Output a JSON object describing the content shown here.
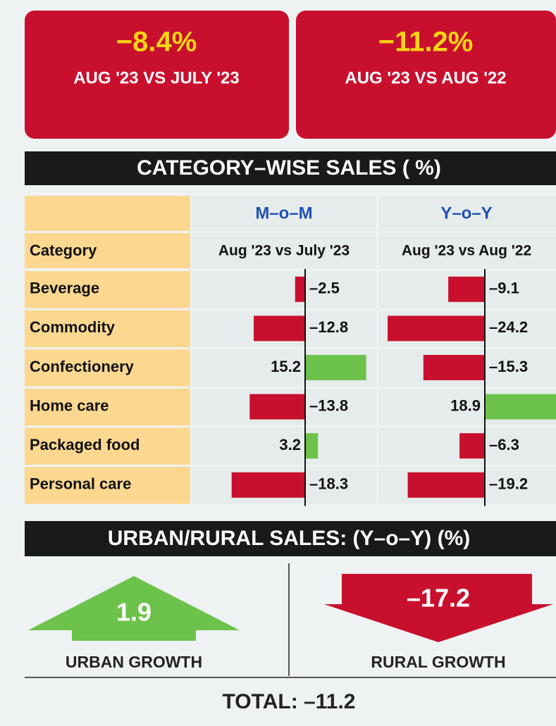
{
  "summary": [
    {
      "value": "−8.4%",
      "label": "AUG '23 VS JULY '23"
    },
    {
      "value": "−11.2%",
      "label": "AUG '23 VS AUG '22"
    }
  ],
  "table": {
    "title": "CATEGORY–WISE SALES ( %)",
    "groups": [
      "M–o–M",
      "Y–o–Y"
    ],
    "header": [
      "Category",
      "Aug '23 vs July '23",
      "Aug '23 vs Aug '22"
    ],
    "categories": [
      "Beverage",
      "Commodity",
      "Confectionery",
      "Home care",
      "Packaged food",
      "Personal care"
    ],
    "mom": {
      "values": [
        -2.5,
        -12.8,
        15.2,
        -13.8,
        3.2,
        -18.3
      ],
      "value_labels": [
        "–2.5",
        "–12.8",
        "15.2",
        "–13.8",
        "3.2",
        "–18.3"
      ]
    },
    "yoy": {
      "values": [
        -9.1,
        -24.2,
        -15.3,
        18.9,
        -6.3,
        -19.2
      ],
      "value_labels": [
        "–9.1",
        "–24.2",
        "–15.3",
        "18.9",
        "–6.3",
        "–19.2"
      ]
    },
    "negative_color": "#c8102e",
    "positive_color": "#6cc24a"
  },
  "urban_rural": {
    "title": "URBAN/RURAL SALES:  (Y–o–Y) (%)",
    "urban": {
      "value": "1.9",
      "label": "URBAN GROWTH"
    },
    "rural": {
      "value": "–17.2",
      "label": "RURAL GROWTH"
    },
    "total": "TOTAL: –11.2"
  }
}
